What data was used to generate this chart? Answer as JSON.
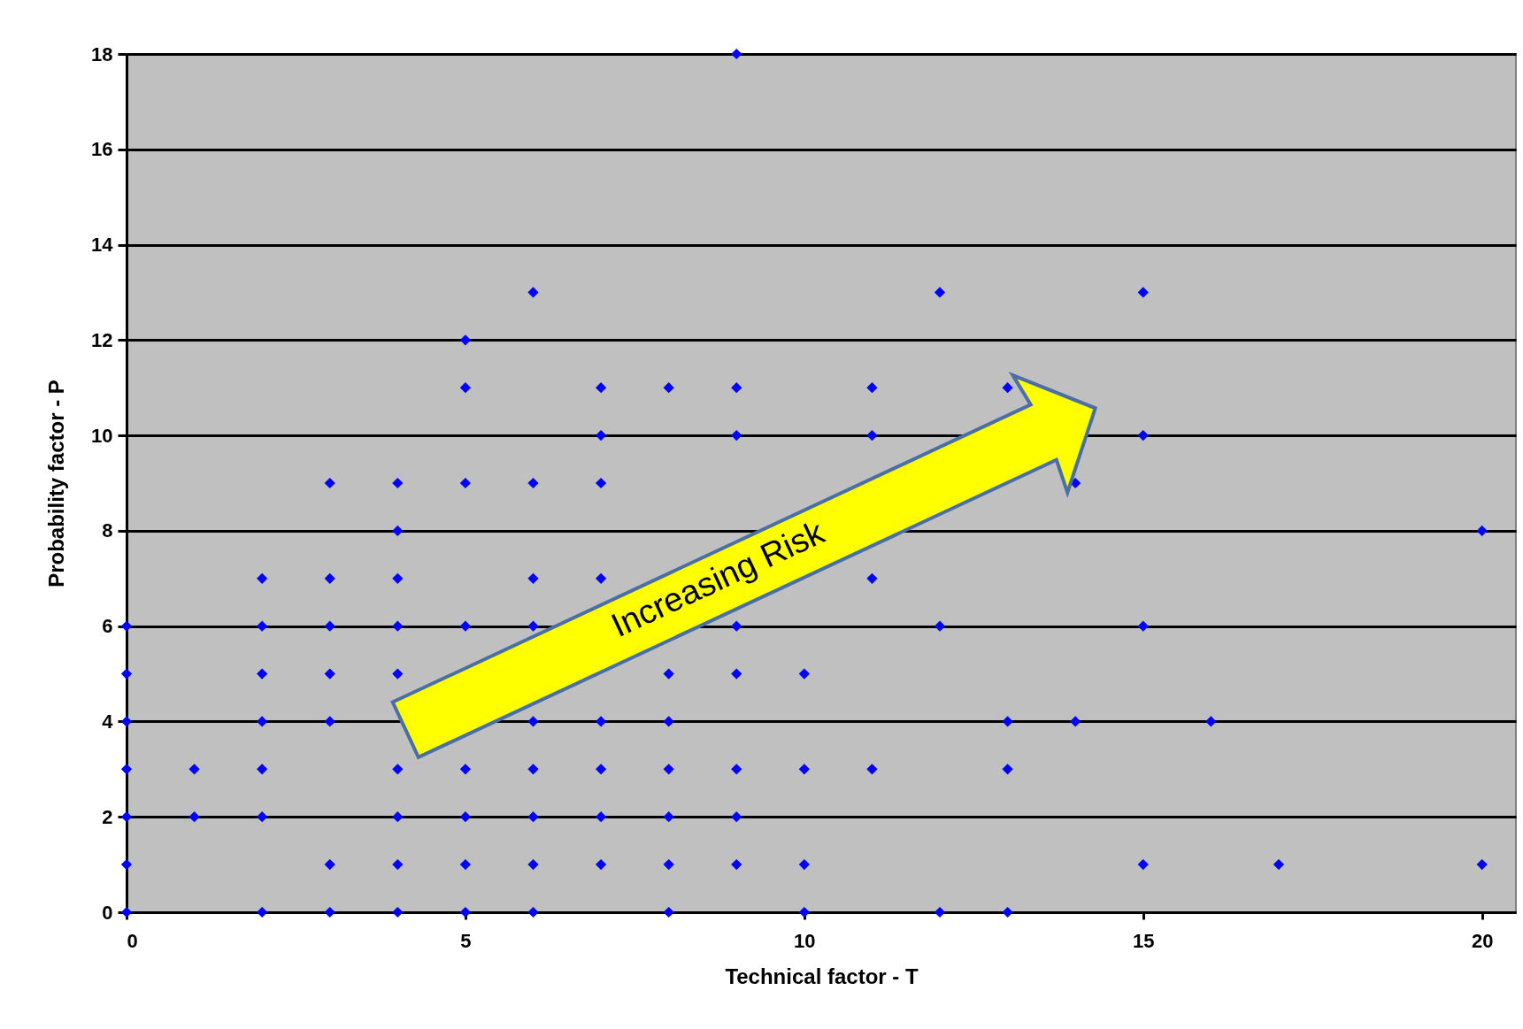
{
  "chart_data": {
    "type": "scatter",
    "xlabel": "Technical factor - T",
    "ylabel": "Probability factor - P",
    "xlim": [
      0,
      20.5
    ],
    "xticks": [
      0,
      5,
      10,
      15,
      20
    ],
    "ylim": [
      0,
      18
    ],
    "yticks": [
      0,
      2,
      4,
      6,
      8,
      10,
      12,
      14,
      16,
      18
    ],
    "grid": "y",
    "marker": "diamond",
    "annotations": [
      "Increasing Risk"
    ],
    "series": [
      {
        "color": "#0000ff",
        "x": [
          9,
          6,
          12,
          15,
          5,
          5,
          7,
          8,
          9,
          11,
          13,
          7,
          9,
          11,
          15,
          3,
          4,
          5,
          6,
          7,
          14,
          4,
          20,
          2,
          3,
          4,
          6,
          7,
          11,
          0,
          2,
          3,
          4,
          5,
          6,
          9,
          12,
          15,
          0,
          2,
          3,
          4,
          8,
          9,
          10,
          0,
          2,
          3,
          6,
          7,
          8,
          13,
          14,
          16,
          0,
          1,
          2,
          4,
          5,
          6,
          7,
          8,
          9,
          10,
          11,
          13,
          0,
          1,
          2,
          4,
          5,
          6,
          7,
          8,
          9,
          0,
          3,
          4,
          5,
          6,
          7,
          8,
          9,
          10,
          15,
          17,
          20,
          0,
          2,
          3,
          4,
          5,
          6,
          8,
          10,
          12,
          13
        ],
        "values": [
          18,
          13,
          13,
          13,
          12,
          11,
          11,
          11,
          11,
          11,
          11,
          10,
          10,
          10,
          10,
          9,
          9,
          9,
          9,
          9,
          9,
          8,
          8,
          7,
          7,
          7,
          7,
          7,
          7,
          6,
          6,
          6,
          6,
          6,
          6,
          6,
          6,
          6,
          5,
          5,
          5,
          5,
          5,
          5,
          5,
          4,
          4,
          4,
          4,
          4,
          4,
          4,
          4,
          4,
          3,
          3,
          3,
          3,
          3,
          3,
          3,
          3,
          3,
          3,
          3,
          3,
          2,
          2,
          2,
          2,
          2,
          2,
          2,
          2,
          2,
          1,
          1,
          1,
          1,
          1,
          1,
          1,
          1,
          1,
          1,
          1,
          1,
          0,
          0,
          0,
          0,
          0,
          0,
          0,
          0,
          0,
          0
        ]
      }
    ]
  }
}
